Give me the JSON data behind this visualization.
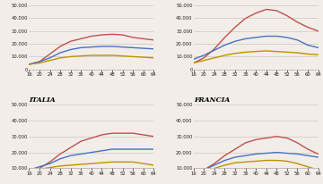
{
  "x": [
    16,
    20,
    24,
    28,
    32,
    36,
    40,
    44,
    48,
    52,
    56,
    60,
    64
  ],
  "panels": [
    {
      "label": null,
      "ylim": [
        0,
        50000
      ],
      "yticks": [
        0,
        10000,
        20000,
        30000,
        40000,
        50000
      ],
      "lines": {
        "red": [
          4000,
          6000,
          12000,
          18000,
          22000,
          24000,
          26000,
          27000,
          27500,
          27000,
          25000,
          24000,
          23000
        ],
        "blue": [
          4000,
          6000,
          9000,
          13000,
          15500,
          17000,
          17500,
          18000,
          18000,
          17500,
          17000,
          16500,
          16000
        ],
        "gold": [
          4000,
          5000,
          7000,
          9000,
          10000,
          10500,
          11000,
          11000,
          11000,
          10500,
          10000,
          9500,
          9000
        ]
      }
    },
    {
      "label": null,
      "ylim": [
        0,
        50000
      ],
      "yticks": [
        0,
        10000,
        20000,
        30000,
        40000,
        50000
      ],
      "lines": {
        "red": [
          5000,
          9000,
          16000,
          25000,
          33000,
          40000,
          44000,
          47000,
          46000,
          42000,
          37000,
          33000,
          30000
        ],
        "blue": [
          8000,
          11000,
          15000,
          19000,
          22000,
          24000,
          25000,
          26000,
          26000,
          25000,
          23000,
          19000,
          17000
        ],
        "gold": [
          5000,
          7000,
          9000,
          11000,
          12500,
          13500,
          14000,
          14500,
          14000,
          13500,
          13000,
          12000,
          11500
        ]
      }
    },
    {
      "label": "ITALIA",
      "ylim": [
        10000,
        50000
      ],
      "yticks": [
        10000,
        20000,
        30000,
        40000,
        50000
      ],
      "lines": {
        "red": [
          8000,
          10000,
          14000,
          19000,
          23000,
          27000,
          29000,
          31000,
          32000,
          32000,
          32000,
          31000,
          30000
        ],
        "blue": [
          9000,
          11000,
          13000,
          16000,
          18000,
          19000,
          20000,
          21000,
          22000,
          22000,
          22000,
          22000,
          22000
        ],
        "gold": [
          9000,
          9500,
          10500,
          11500,
          12000,
          12500,
          13000,
          13500,
          14000,
          14000,
          14000,
          13000,
          12000
        ]
      }
    },
    {
      "label": "FRANCIA",
      "ylim": [
        10000,
        50000
      ],
      "yticks": [
        10000,
        20000,
        30000,
        40000,
        50000
      ],
      "lines": {
        "red": [
          7000,
          9000,
          13000,
          18000,
          22000,
          26000,
          28000,
          29000,
          30000,
          29000,
          26000,
          22000,
          19000
        ],
        "blue": [
          7000,
          9000,
          12000,
          15000,
          17000,
          18000,
          19000,
          19500,
          20000,
          19500,
          19000,
          18000,
          17000
        ],
        "gold": [
          6000,
          8000,
          10000,
          12000,
          13500,
          14000,
          14500,
          15000,
          15000,
          14500,
          13000,
          11000,
          9000
        ]
      }
    }
  ],
  "colors": {
    "red": "#c0504d",
    "blue": "#4472c4",
    "gold": "#bf9000"
  },
  "xticks": [
    16,
    20,
    24,
    28,
    32,
    36,
    40,
    44,
    48,
    52,
    56,
    60,
    64
  ],
  "bg_color": "#f2ede8",
  "line_width": 1.0
}
